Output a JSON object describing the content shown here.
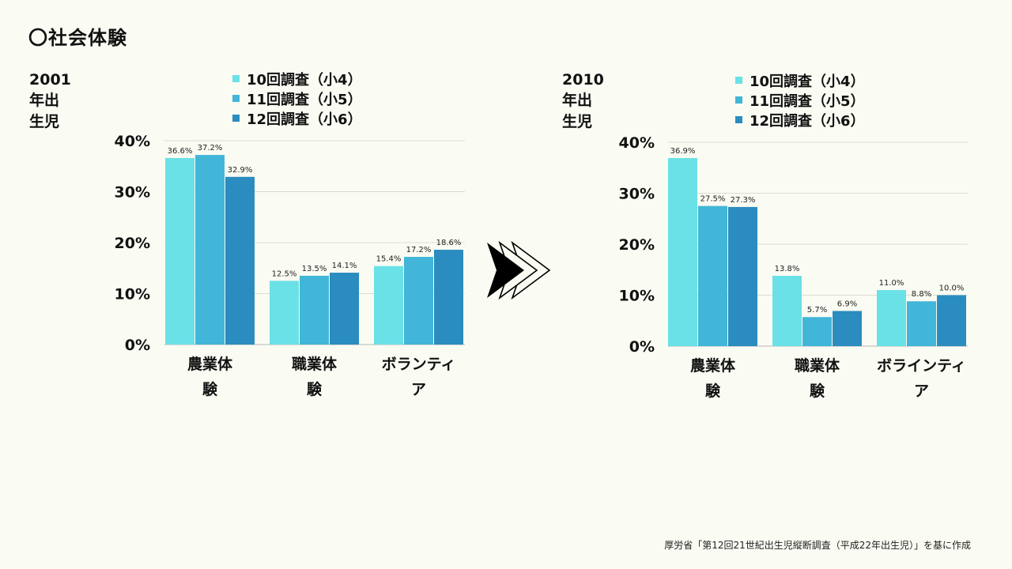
{
  "page": {
    "title": "〇社会体験",
    "source": "厚労省「第12回21世紀出生児縦断調査（平成22年出生児）」を基に作成",
    "arrow_icon": "triple-chevron-right-icon"
  },
  "colors": {
    "background": "#fafbf3",
    "series": [
      "#6ae1e6",
      "#41b6d8",
      "#2b8cbf"
    ],
    "arrow_fill": "#000000"
  },
  "chart_data": [
    {
      "type": "bar",
      "title": "2001年出生児",
      "categories": [
        [
          "農業体",
          "験"
        ],
        [
          "職業体",
          "験"
        ],
        [
          "ボランティ",
          "ア"
        ]
      ],
      "series": [
        {
          "name": "10回調査（小4）",
          "values": [
            36.6,
            12.5,
            15.4
          ],
          "labels": [
            "36.6%",
            "12.5%",
            "15.4%"
          ]
        },
        {
          "name": "11回調査（小5）",
          "values": [
            37.2,
            13.5,
            17.2
          ],
          "labels": [
            "37.2%",
            "13.5%",
            "17.2%"
          ]
        },
        {
          "name": "12回調査（小6）",
          "values": [
            32.9,
            14.1,
            18.6
          ],
          "labels": [
            "32.9%",
            "14.1%",
            "18.6%"
          ]
        }
      ],
      "ylim": [
        0,
        40
      ],
      "yticks": [
        "0%",
        "10%",
        "20%",
        "30%",
        "40%"
      ],
      "grid": true,
      "legend_position": "top"
    },
    {
      "type": "bar",
      "title": "2010年出生児",
      "categories": [
        [
          "農業体",
          "験"
        ],
        [
          "職業体",
          "験"
        ],
        [
          "ボラインティ",
          "ア"
        ]
      ],
      "series": [
        {
          "name": "10回調査（小4）",
          "values": [
            36.9,
            13.8,
            11.0
          ],
          "labels": [
            "36.9%",
            "13.8%",
            "11.0%"
          ]
        },
        {
          "name": "11回調査（小5）",
          "values": [
            27.5,
            5.7,
            8.8
          ],
          "labels": [
            "27.5%",
            "5.7%",
            "8.8%"
          ]
        },
        {
          "name": "12回調査（小6）",
          "values": [
            27.3,
            6.9,
            10.0
          ],
          "labels": [
            "27.3%",
            "6.9%",
            "10.0%"
          ]
        }
      ],
      "ylim": [
        0,
        40
      ],
      "yticks": [
        "0%",
        "10%",
        "20%",
        "30%",
        "40%"
      ],
      "grid": true,
      "legend_position": "top"
    }
  ]
}
